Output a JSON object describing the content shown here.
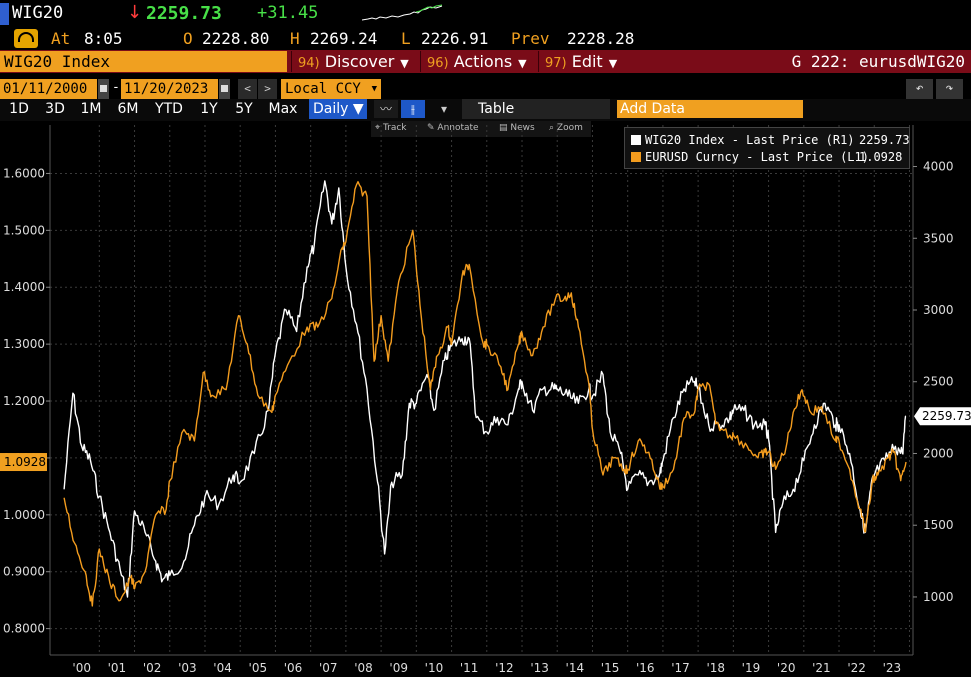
{
  "header": {
    "ticker": "WIG20",
    "direction_arrow": "↓",
    "last_price": "2259.73",
    "change": "+31.45",
    "at_label": "At",
    "time": "8:05",
    "open_label": "O",
    "open": "2228.80",
    "high_label": "H",
    "high": "2269.24",
    "low_label": "L",
    "low": "2226.91",
    "prev_label": "Prev",
    "prev": "2228.28"
  },
  "toolbar": {
    "security_name": "WIG20 Index",
    "menus": [
      {
        "num": "94)",
        "label": "Discover"
      },
      {
        "num": "96)",
        "label": "Actions"
      },
      {
        "num": "97)",
        "label": "Edit"
      }
    ],
    "graph_label": "G 222: eurusdWIG20"
  },
  "range": {
    "start_date": "01/11/2000",
    "end_date": "11/20/2023",
    "separator": "-",
    "currency": "Local CCY"
  },
  "periods": [
    "1D",
    "3D",
    "1M",
    "6M",
    "YTD",
    "1Y",
    "5Y",
    "Max"
  ],
  "frequency": "Daily ▼",
  "table_label": "Table",
  "add_data_placeholder": "Add Data",
  "chart_tools": [
    "Track",
    "Annotate",
    "News",
    "Zoom"
  ],
  "legend": [
    {
      "label": "WIG20 Index - Last Price (R1)",
      "value": "2259.73",
      "color": "#ffffff"
    },
    {
      "label": "EURUSD Curncy - Last Price (L1)",
      "value": "1.0928",
      "color": "#f39c1e"
    }
  ],
  "chart_data": {
    "type": "line",
    "x_ticks": [
      "'00",
      "'01",
      "'02",
      "'03",
      "'04",
      "'05",
      "'06",
      "'07",
      "'08",
      "'09",
      "'10",
      "'11",
      "'12",
      "'13",
      "'14",
      "'15",
      "'16",
      "'17",
      "'18",
      "'19",
      "'20",
      "'21",
      "'22",
      "'23"
    ],
    "left_axis": {
      "ticks": [
        "0.8000",
        "0.9000",
        "1.0000",
        "1.1000",
        "1.2000",
        "1.3000",
        "1.4000",
        "1.5000",
        "1.6000"
      ],
      "range": [
        0.78,
        1.65
      ]
    },
    "right_axis": {
      "ticks": [
        "1000",
        "1500",
        "2000",
        "2500",
        "3000",
        "3500",
        "4000"
      ],
      "range": [
        700,
        4150
      ]
    },
    "left_marker": "1.0928",
    "right_marker": "2259.73",
    "series": [
      {
        "name": "WIG20 Index - Last Price (R1)",
        "axis": "right",
        "color": "#ffffff",
        "points": [
          [
            2000.0,
            1750
          ],
          [
            2000.25,
            2420
          ],
          [
            2000.5,
            2050
          ],
          [
            2000.75,
            1950
          ],
          [
            2001.0,
            1700
          ],
          [
            2001.3,
            1450
          ],
          [
            2001.6,
            1180
          ],
          [
            2001.8,
            1000
          ],
          [
            2002.0,
            1600
          ],
          [
            2002.3,
            1450
          ],
          [
            2002.6,
            1250
          ],
          [
            2002.8,
            1120
          ],
          [
            2003.0,
            1150
          ],
          [
            2003.4,
            1250
          ],
          [
            2003.7,
            1500
          ],
          [
            2004.0,
            1700
          ],
          [
            2004.4,
            1650
          ],
          [
            2004.8,
            1850
          ],
          [
            2005.0,
            1800
          ],
          [
            2005.4,
            2000
          ],
          [
            2005.8,
            2300
          ],
          [
            2006.0,
            2700
          ],
          [
            2006.3,
            3000
          ],
          [
            2006.6,
            2850
          ],
          [
            2006.9,
            3300
          ],
          [
            2007.1,
            3450
          ],
          [
            2007.4,
            3900
          ],
          [
            2007.6,
            3600
          ],
          [
            2007.8,
            3850
          ],
          [
            2008.0,
            3300
          ],
          [
            2008.3,
            2900
          ],
          [
            2008.6,
            2450
          ],
          [
            2008.9,
            1800
          ],
          [
            2009.1,
            1300
          ],
          [
            2009.3,
            1800
          ],
          [
            2009.6,
            1850
          ],
          [
            2009.8,
            2350
          ],
          [
            2010.0,
            2350
          ],
          [
            2010.3,
            2550
          ],
          [
            2010.5,
            2300
          ],
          [
            2010.8,
            2650
          ],
          [
            2011.0,
            2750
          ],
          [
            2011.3,
            2800
          ],
          [
            2011.5,
            2800
          ],
          [
            2011.7,
            2250
          ],
          [
            2012.0,
            2150
          ],
          [
            2012.3,
            2250
          ],
          [
            2012.6,
            2200
          ],
          [
            2012.9,
            2450
          ],
          [
            2013.0,
            2500
          ],
          [
            2013.3,
            2300
          ],
          [
            2013.6,
            2450
          ],
          [
            2013.9,
            2450
          ],
          [
            2014.0,
            2450
          ],
          [
            2014.3,
            2400
          ],
          [
            2014.6,
            2350
          ],
          [
            2014.9,
            2450
          ],
          [
            2015.0,
            2400
          ],
          [
            2015.3,
            2550
          ],
          [
            2015.5,
            2150
          ],
          [
            2015.8,
            2000
          ],
          [
            2016.0,
            1750
          ],
          [
            2016.3,
            1850
          ],
          [
            2016.6,
            1800
          ],
          [
            2016.9,
            1850
          ],
          [
            2017.0,
            1950
          ],
          [
            2017.3,
            2250
          ],
          [
            2017.6,
            2450
          ],
          [
            2017.9,
            2500
          ],
          [
            2018.0,
            2450
          ],
          [
            2018.3,
            2200
          ],
          [
            2018.6,
            2200
          ],
          [
            2018.9,
            2250
          ],
          [
            2019.0,
            2300
          ],
          [
            2019.3,
            2300
          ],
          [
            2019.6,
            2200
          ],
          [
            2019.9,
            2200
          ],
          [
            2020.0,
            2100
          ],
          [
            2020.2,
            1450
          ],
          [
            2020.4,
            1650
          ],
          [
            2020.7,
            1750
          ],
          [
            2021.0,
            1950
          ],
          [
            2021.3,
            2200
          ],
          [
            2021.6,
            2350
          ],
          [
            2021.9,
            2200
          ],
          [
            2022.0,
            2200
          ],
          [
            2022.3,
            2000
          ],
          [
            2022.6,
            1600
          ],
          [
            2022.75,
            1450
          ],
          [
            2022.9,
            1750
          ],
          [
            2023.0,
            1850
          ],
          [
            2023.3,
            1950
          ],
          [
            2023.6,
            2050
          ],
          [
            2023.8,
            2000
          ],
          [
            2023.9,
            2259.73
          ]
        ]
      },
      {
        "name": "EURUSD Curncy - Last Price (L1)",
        "axis": "left",
        "color": "#f39c1e",
        "points": [
          [
            2000.0,
            1.03
          ],
          [
            2000.3,
            0.95
          ],
          [
            2000.6,
            0.9
          ],
          [
            2000.8,
            0.84
          ],
          [
            2001.0,
            0.94
          ],
          [
            2001.3,
            0.88
          ],
          [
            2001.6,
            0.85
          ],
          [
            2001.9,
            0.89
          ],
          [
            2002.0,
            0.87
          ],
          [
            2002.3,
            0.9
          ],
          [
            2002.6,
            1.0
          ],
          [
            2002.9,
            1.01
          ],
          [
            2003.0,
            1.06
          ],
          [
            2003.4,
            1.15
          ],
          [
            2003.7,
            1.13
          ],
          [
            2003.95,
            1.25
          ],
          [
            2004.2,
            1.21
          ],
          [
            2004.6,
            1.22
          ],
          [
            2004.95,
            1.35
          ],
          [
            2005.2,
            1.3
          ],
          [
            2005.5,
            1.21
          ],
          [
            2005.9,
            1.18
          ],
          [
            2006.0,
            1.21
          ],
          [
            2006.4,
            1.27
          ],
          [
            2006.9,
            1.33
          ],
          [
            2007.2,
            1.33
          ],
          [
            2007.6,
            1.38
          ],
          [
            2007.9,
            1.47
          ],
          [
            2008.0,
            1.48
          ],
          [
            2008.3,
            1.58
          ],
          [
            2008.6,
            1.56
          ],
          [
            2008.8,
            1.27
          ],
          [
            2009.0,
            1.35
          ],
          [
            2009.2,
            1.27
          ],
          [
            2009.5,
            1.41
          ],
          [
            2009.9,
            1.5
          ],
          [
            2010.1,
            1.37
          ],
          [
            2010.4,
            1.22
          ],
          [
            2010.6,
            1.28
          ],
          [
            2010.9,
            1.33
          ],
          [
            2011.0,
            1.3
          ],
          [
            2011.3,
            1.42
          ],
          [
            2011.5,
            1.44
          ],
          [
            2011.9,
            1.3
          ],
          [
            2012.0,
            1.3
          ],
          [
            2012.4,
            1.26
          ],
          [
            2012.6,
            1.22
          ],
          [
            2012.9,
            1.3
          ],
          [
            2013.0,
            1.32
          ],
          [
            2013.3,
            1.28
          ],
          [
            2013.6,
            1.33
          ],
          [
            2013.95,
            1.38
          ],
          [
            2014.2,
            1.38
          ],
          [
            2014.4,
            1.39
          ],
          [
            2014.6,
            1.33
          ],
          [
            2014.9,
            1.23
          ],
          [
            2015.0,
            1.15
          ],
          [
            2015.3,
            1.07
          ],
          [
            2015.6,
            1.1
          ],
          [
            2015.9,
            1.08
          ],
          [
            2016.0,
            1.08
          ],
          [
            2016.3,
            1.13
          ],
          [
            2016.6,
            1.11
          ],
          [
            2016.9,
            1.05
          ],
          [
            2017.0,
            1.05
          ],
          [
            2017.3,
            1.08
          ],
          [
            2017.6,
            1.17
          ],
          [
            2017.9,
            1.18
          ],
          [
            2018.0,
            1.22
          ],
          [
            2018.3,
            1.23
          ],
          [
            2018.5,
            1.16
          ],
          [
            2018.9,
            1.14
          ],
          [
            2019.0,
            1.14
          ],
          [
            2019.4,
            1.12
          ],
          [
            2019.7,
            1.1
          ],
          [
            2019.9,
            1.11
          ],
          [
            2020.0,
            1.11
          ],
          [
            2020.2,
            1.08
          ],
          [
            2020.5,
            1.12
          ],
          [
            2020.7,
            1.18
          ],
          [
            2020.95,
            1.22
          ],
          [
            2021.2,
            1.18
          ],
          [
            2021.5,
            1.19
          ],
          [
            2021.9,
            1.13
          ],
          [
            2022.0,
            1.13
          ],
          [
            2022.3,
            1.08
          ],
          [
            2022.6,
            1.01
          ],
          [
            2022.75,
            0.97
          ],
          [
            2022.95,
            1.06
          ],
          [
            2023.1,
            1.07
          ],
          [
            2023.4,
            1.1
          ],
          [
            2023.55,
            1.11
          ],
          [
            2023.75,
            1.06
          ],
          [
            2023.9,
            1.0928
          ]
        ]
      }
    ]
  }
}
